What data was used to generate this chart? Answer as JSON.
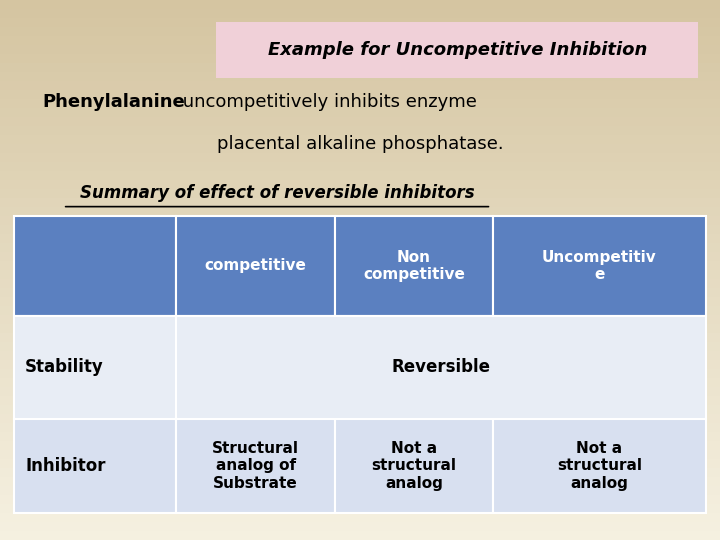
{
  "bg_color_top": "#f5f0e0",
  "bg_color_bottom": "#d4c4a0",
  "title_text": "Example for Uncompetitive Inhibition",
  "title_bg": "#f0d0d8",
  "title_color": "#000000",
  "subtitle_bold": "Phenylalanine",
  "subtitle_rest": " uncompetitively inhibits enzyme",
  "subtitle2": "placental alkaline phosphatase.",
  "subtitle3": "Summary of effect of reversible inhibitors",
  "header_bg": "#5b80c0",
  "header_text_color": "#ffffff",
  "row1_bg": "#e8edf5",
  "row2_bg": "#d8e0f0",
  "table_text_color": "#000000",
  "col_headers": [
    "competitive",
    "Non\ncompetitive",
    "Uncompetitiv\ne"
  ],
  "row_labels": [
    "Stability",
    "Inhibitor"
  ],
  "stability_text": "Reversible",
  "inhibitor_texts": [
    "Structural\nanalog of\nSubstrate",
    "Not a\nstructural\nanalog",
    "Not a\nstructural\nanalog"
  ]
}
